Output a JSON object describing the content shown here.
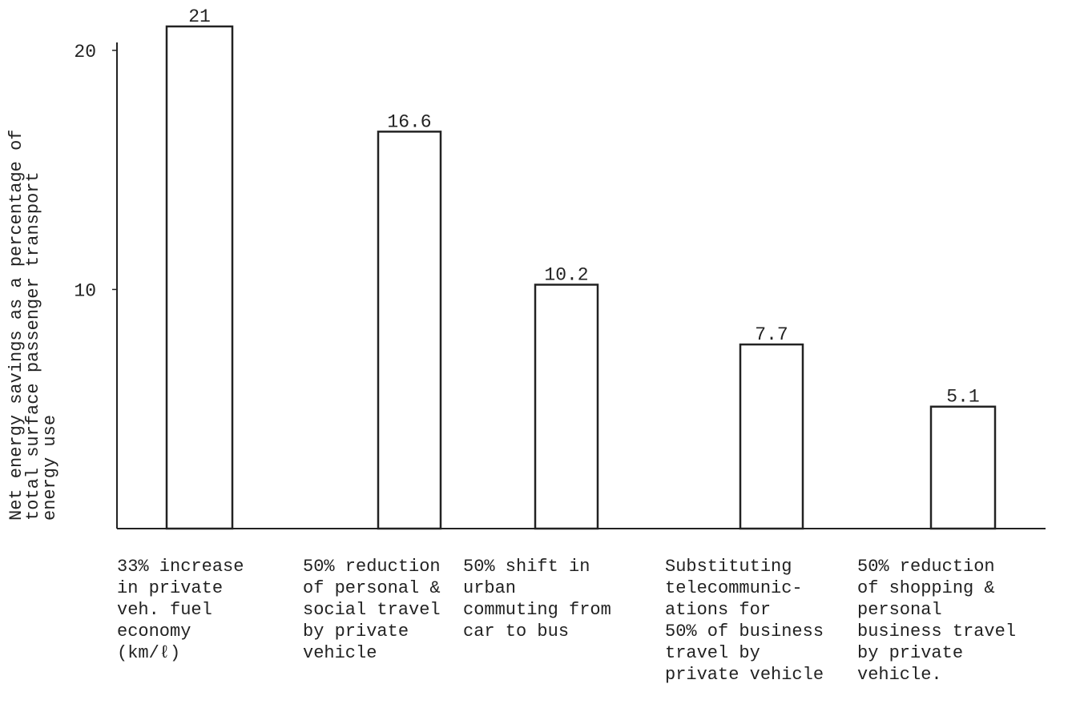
{
  "chart_data": {
    "type": "bar",
    "y_label": "Net energy savings as a percentage of\ntotal surface passenger transport\nenergy use",
    "categories": [
      "33% increase\nin private\nveh. fuel\neconomy\n(km/ℓ)",
      "50% reduction\nof personal &\nsocial travel\nby private\nvehicle",
      "50% shift in\nurban\ncommuting from\ncar to bus",
      "Substituting\ntelecommunic-\nations for\n50% of business\ntravel by\nprivate vehicle",
      "50% reduction\nof shopping &\npersonal\nbusiness travel\nby private\nvehicle."
    ],
    "values": [
      21,
      16.6,
      10.2,
      7.7,
      5.1
    ],
    "color": "#ffffff",
    "ylim": [
      0,
      21
    ],
    "yticks": [
      10,
      20
    ],
    "grid": false
  }
}
